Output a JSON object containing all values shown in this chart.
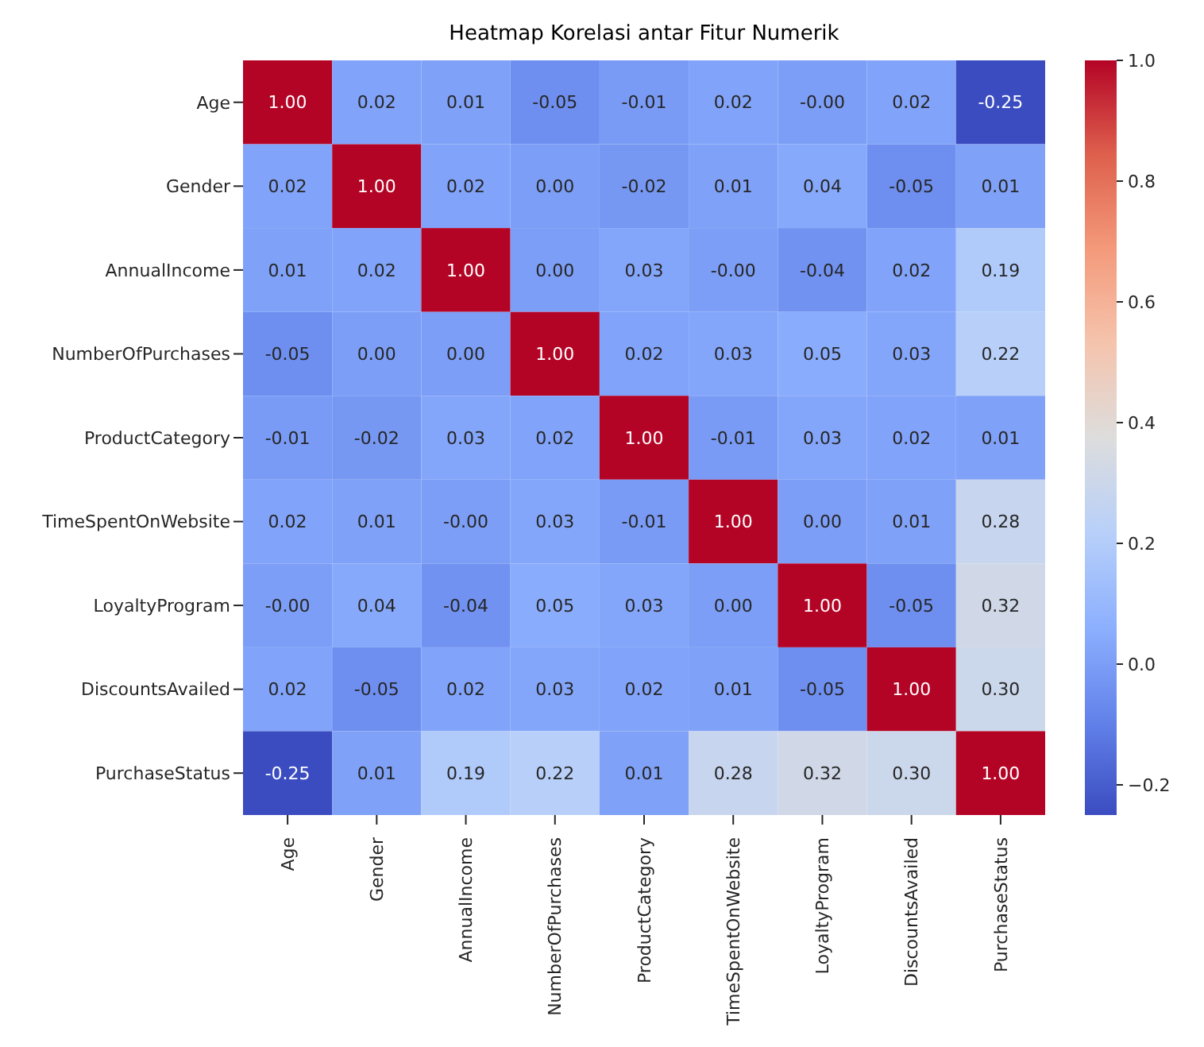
{
  "chart_data": {
    "type": "heatmap",
    "title": "Heatmap Korelasi antar Fitur Numerik",
    "categories": [
      "Age",
      "Gender",
      "AnnualIncome",
      "NumberOfPurchases",
      "ProductCategory",
      "TimeSpentOnWebsite",
      "LoyaltyProgram",
      "DiscountsAvailed",
      "PurchaseStatus"
    ],
    "y_categories": [
      "Age",
      "Gender",
      "AnnualIncome",
      "NumberOfPurchases",
      "ProductCategory",
      "TimeSpentOnWebsite",
      "LoyaltyProgram",
      "DiscountsAvailed",
      "PurchaseStatus"
    ],
    "cells": [
      [
        1.0,
        0.02,
        0.01,
        -0.05,
        -0.01,
        0.02,
        0.0,
        0.02,
        -0.25
      ],
      [
        0.02,
        1.0,
        0.02,
        0.0,
        -0.02,
        0.01,
        0.04,
        -0.05,
        0.01
      ],
      [
        0.01,
        0.02,
        1.0,
        0.0,
        0.03,
        0.0,
        -0.04,
        0.02,
        0.19
      ],
      [
        -0.05,
        0.0,
        0.0,
        1.0,
        0.02,
        0.03,
        0.05,
        0.03,
        0.22
      ],
      [
        -0.01,
        -0.02,
        0.03,
        0.02,
        1.0,
        -0.01,
        0.03,
        0.02,
        0.01
      ],
      [
        0.02,
        0.01,
        0.0,
        0.03,
        -0.01,
        1.0,
        0.0,
        0.01,
        0.28
      ],
      [
        0.0,
        0.04,
        -0.04,
        0.05,
        0.03,
        0.0,
        1.0,
        -0.05,
        0.32
      ],
      [
        0.02,
        -0.05,
        0.02,
        0.03,
        0.02,
        0.01,
        -0.05,
        1.0,
        0.3
      ],
      [
        -0.25,
        0.01,
        0.19,
        0.22,
        0.01,
        0.28,
        0.32,
        0.3,
        1.0
      ]
    ],
    "cell_labels": [
      [
        "1.00",
        "0.02",
        "0.01",
        "-0.05",
        "-0.01",
        "0.02",
        "-0.00",
        "0.02",
        "-0.25"
      ],
      [
        "0.02",
        "1.00",
        "0.02",
        "0.00",
        "-0.02",
        "0.01",
        "0.04",
        "-0.05",
        "0.01"
      ],
      [
        "0.01",
        "0.02",
        "1.00",
        "0.00",
        "0.03",
        "-0.00",
        "-0.04",
        "0.02",
        "0.19"
      ],
      [
        "-0.05",
        "0.00",
        "0.00",
        "1.00",
        "0.02",
        "0.03",
        "0.05",
        "0.03",
        "0.22"
      ],
      [
        "-0.01",
        "-0.02",
        "0.03",
        "0.02",
        "1.00",
        "-0.01",
        "0.03",
        "0.02",
        "0.01"
      ],
      [
        "0.02",
        "0.01",
        "-0.00",
        "0.03",
        "-0.01",
        "1.00",
        "0.00",
        "0.01",
        "0.28"
      ],
      [
        "-0.00",
        "0.04",
        "-0.04",
        "0.05",
        "0.03",
        "0.00",
        "1.00",
        "-0.05",
        "0.32"
      ],
      [
        "0.02",
        "-0.05",
        "0.02",
        "0.03",
        "0.02",
        "0.01",
        "-0.05",
        "1.00",
        "0.30"
      ],
      [
        "-0.25",
        "0.01",
        "0.19",
        "0.22",
        "0.01",
        "0.28",
        "0.32",
        "0.30",
        "1.00"
      ]
    ],
    "clim": [
      -0.25,
      1.0
    ],
    "cticks": [
      {
        "value": -0.2,
        "label": "−0.2"
      },
      {
        "value": 0.0,
        "label": "0.0"
      },
      {
        "value": 0.2,
        "label": "0.2"
      },
      {
        "value": 0.4,
        "label": "0.4"
      },
      {
        "value": 0.6,
        "label": "0.6"
      },
      {
        "value": 0.8,
        "label": "0.8"
      },
      {
        "value": 1.0,
        "label": "1.0"
      }
    ]
  }
}
